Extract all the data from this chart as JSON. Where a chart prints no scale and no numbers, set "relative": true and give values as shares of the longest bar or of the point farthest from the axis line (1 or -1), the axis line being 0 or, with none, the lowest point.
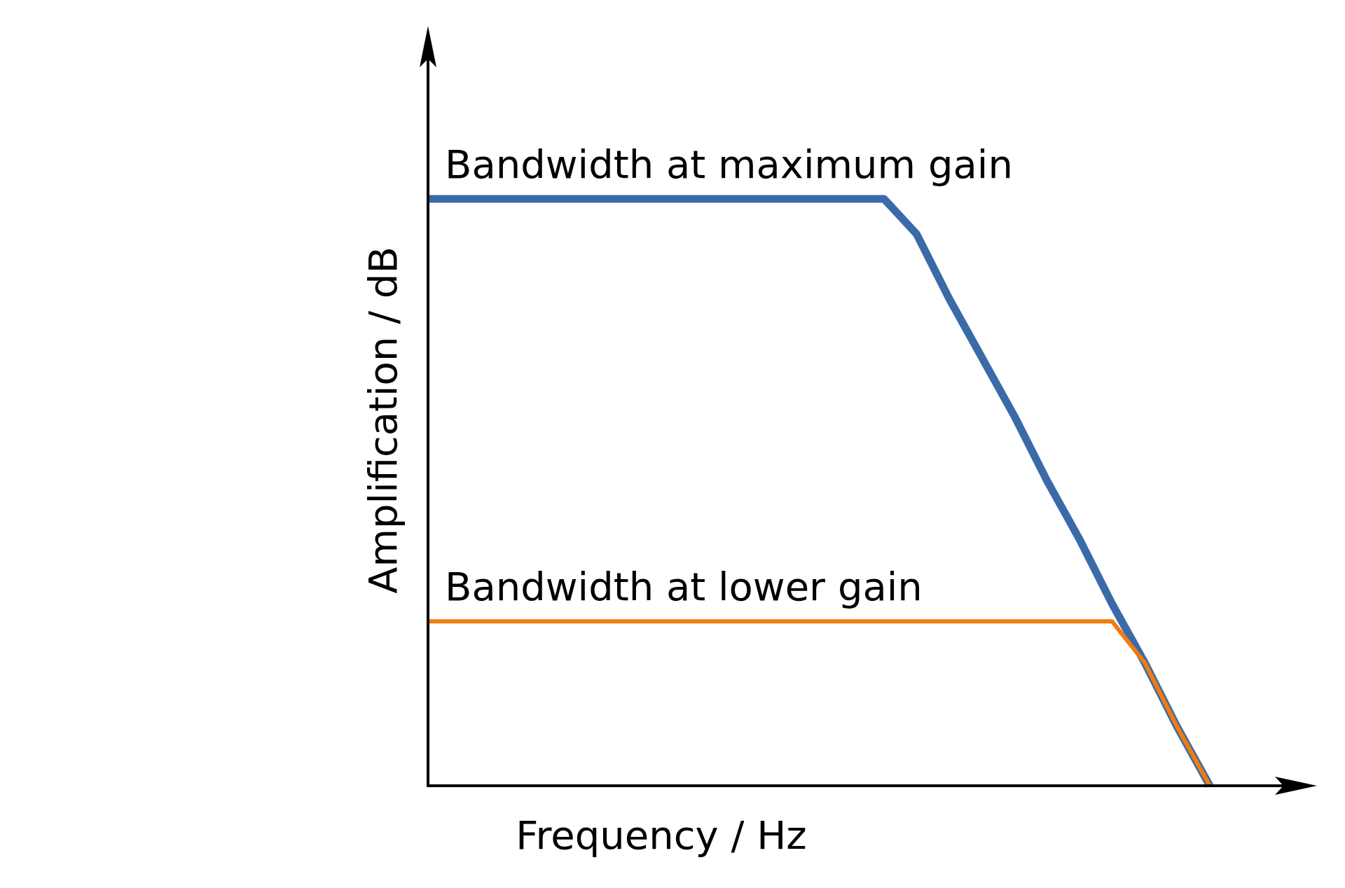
{
  "chart_data": {
    "type": "line",
    "relative": true,
    "xlabel": "Frequency / Hz",
    "ylabel": "Amplification / dB",
    "categories": [
      null,
      null,
      null,
      null,
      null,
      null,
      null,
      null,
      null,
      null,
      null,
      null,
      null,
      null,
      null,
      null,
      null,
      null,
      null,
      null,
      null,
      null,
      null,
      null,
      null
    ],
    "series": [
      {
        "name": "Bandwidth at maximum gain",
        "color": "#3a6aa8",
        "values": [
          1,
          1,
          1,
          1,
          1,
          1,
          1,
          1,
          1,
          1,
          1,
          1,
          1,
          1,
          1,
          0.94,
          0.83,
          0.73,
          0.63,
          0.52,
          0.42,
          0.31,
          0.21,
          0.1,
          0
        ]
      },
      {
        "name": "Bandwidth at lower gain",
        "color": "#f07c10",
        "values": [
          0.28,
          0.28,
          0.28,
          0.28,
          0.28,
          0.28,
          0.28,
          0.28,
          0.28,
          0.28,
          0.28,
          0.28,
          0.28,
          0.28,
          0.28,
          0.28,
          0.28,
          0.28,
          0.28,
          0.28,
          0.28,
          0.28,
          0.21,
          0.1,
          0
        ]
      }
    ],
    "grid": false,
    "legend": false,
    "marker": "none",
    "line_style": "solid",
    "tick_labels": false
  }
}
